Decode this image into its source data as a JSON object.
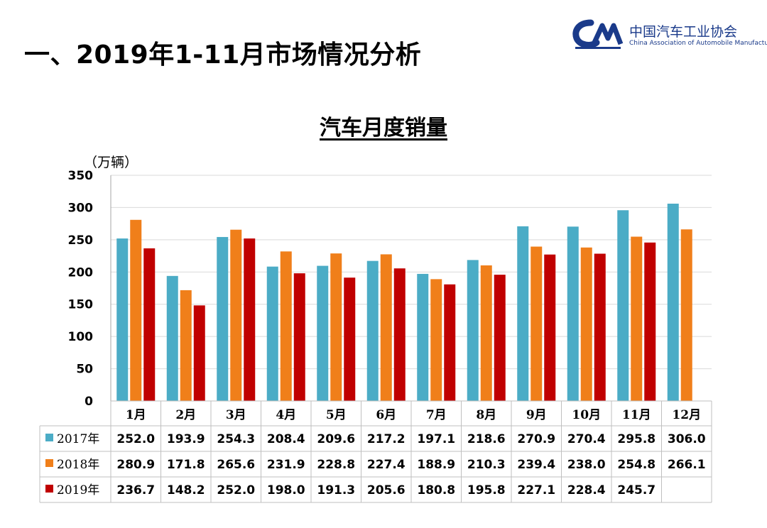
{
  "page": {
    "title": "一、2019年1-11月市场情况分析"
  },
  "logo": {
    "mark_text": "CAAM",
    "cn_name": "中国汽车工业协会",
    "en_name": "China Association of Automobile Manufacturers"
  },
  "colors": {
    "s2017": "#4bacc6",
    "s2018": "#f07f1a",
    "s2019": "#c00000",
    "logo_blue": "#1a3a8a",
    "gridline": "#d9d9d9",
    "axis": "#a6a6a6"
  },
  "chart_data": {
    "type": "bar",
    "title": "汽车月度销量",
    "ylabel": "（万辆）",
    "xlabel": "",
    "ylim": [
      0,
      350
    ],
    "yticks": [
      "0",
      "50",
      "100",
      "150",
      "200",
      "250",
      "300",
      "350"
    ],
    "categories": [
      "1月",
      "2月",
      "3月",
      "4月",
      "5月",
      "6月",
      "7月",
      "8月",
      "9月",
      "10月",
      "11月",
      "12月"
    ],
    "series": [
      {
        "name": "2017年",
        "values": [
          252.0,
          193.9,
          254.3,
          208.4,
          209.6,
          217.2,
          197.1,
          218.6,
          270.9,
          270.4,
          295.8,
          306.0
        ]
      },
      {
        "name": "2018年",
        "values": [
          280.9,
          171.8,
          265.6,
          231.9,
          228.8,
          227.4,
          188.9,
          210.3,
          239.4,
          238.0,
          254.8,
          266.1
        ]
      },
      {
        "name": "2019年",
        "values": [
          236.7,
          148.2,
          252.0,
          198.0,
          191.3,
          205.6,
          180.8,
          195.8,
          227.1,
          228.4,
          245.7,
          null
        ]
      }
    ],
    "table": {
      "rows": [
        {
          "label": "2017年",
          "cells": [
            "252.0",
            "193.9",
            "254.3",
            "208.4",
            "209.6",
            "217.2",
            "197.1",
            "218.6",
            "270.9",
            "270.4",
            "295.8",
            "306.0"
          ]
        },
        {
          "label": "2018年",
          "cells": [
            "280.9",
            "171.8",
            "265.6",
            "231.9",
            "228.8",
            "227.4",
            "188.9",
            "210.3",
            "239.4",
            "238.0",
            "254.8",
            "266.1"
          ]
        },
        {
          "label": "2019年",
          "cells": [
            "236.7",
            "148.2",
            "252.0",
            "198.0",
            "191.3",
            "205.6",
            "180.8",
            "195.8",
            "227.1",
            "228.4",
            "245.7",
            ""
          ]
        }
      ]
    }
  }
}
